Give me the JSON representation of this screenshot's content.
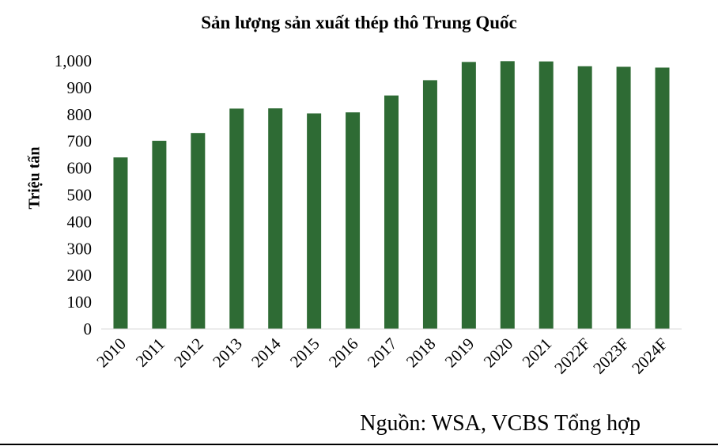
{
  "chart_data": {
    "type": "bar",
    "title": "Sản lượng sản xuất thép thô Trung Quốc",
    "ylabel": "Triệu tấn",
    "xlabel": "",
    "categories": [
      "2010",
      "2011",
      "2012",
      "2013",
      "2014",
      "2015",
      "2016",
      "2017",
      "2018",
      "2019",
      "2020",
      "2021",
      "2022F",
      "2023F",
      "2024F"
    ],
    "values": [
      640,
      702,
      731,
      822,
      823,
      804,
      808,
      871,
      928,
      996,
      999,
      998,
      980,
      978,
      975
    ],
    "yticks": [
      "0",
      "100",
      "200",
      "300",
      "400",
      "500",
      "600",
      "700",
      "800",
      "900",
      "1,000"
    ],
    "ylim": [
      0,
      1000
    ],
    "grid": false,
    "legend": "none",
    "bar_color": "#2e6b34"
  },
  "source_note": "Nguồn: WSA, VCBS Tổng hợp"
}
